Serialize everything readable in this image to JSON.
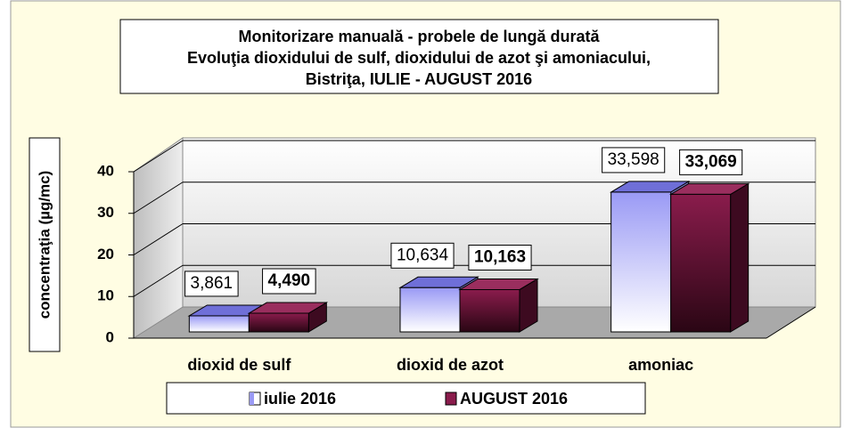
{
  "chart_data": {
    "type": "bar3d",
    "title": [
      "Monitorizare manuală - probele de lungă durată",
      "Evoluţia dioxidului de sulf, dioxidului de azot şi amoniacului,",
      "Bistriţa, IULIE - AUGUST 2016"
    ],
    "y_label": "concentraţia (µg/mc)",
    "categories": [
      "dioxid de sulf",
      "dioxid de azot",
      "amoniac"
    ],
    "series": [
      {
        "name": "iulie 2016",
        "color": "#9a9af5",
        "values": [
          3.861,
          10.634,
          33.598
        ],
        "value_labels": [
          "3,861",
          "10,634",
          "33,598"
        ]
      },
      {
        "name": "AUGUST 2016",
        "color": "#8a1c4c",
        "values": [
          4.49,
          10.163,
          33.069
        ],
        "value_labels": [
          "4,490",
          "10,163",
          "33,069"
        ]
      }
    ],
    "ylim": [
      0,
      40
    ],
    "yticks": [
      0,
      10,
      20,
      30,
      40
    ],
    "grid": true,
    "legend": "bottom"
  }
}
